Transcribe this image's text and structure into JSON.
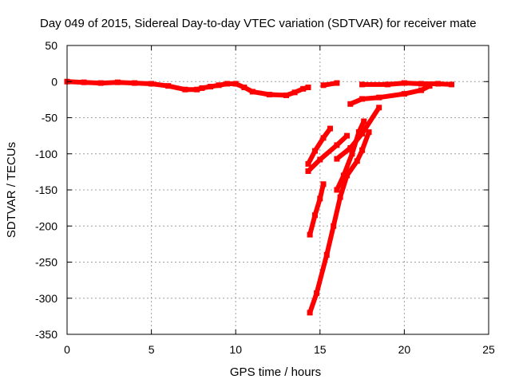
{
  "chart_data": {
    "type": "scatter",
    "title": "Day 049 of 2015, Sidereal Day-to-day VTEC variation (SDTVAR) for receiver mate",
    "xlabel": "GPS time / hours",
    "ylabel": "SDTVAR / TECUs",
    "xlim": [
      0,
      25
    ],
    "ylim": [
      -350,
      50
    ],
    "xticks": [
      0,
      5,
      10,
      15,
      20,
      25
    ],
    "yticks": [
      50,
      0,
      -50,
      -100,
      -150,
      -200,
      -250,
      -300,
      -350
    ],
    "grid": true,
    "legend": "none",
    "series_color": "#ff0000",
    "series": [
      {
        "name": "main-trace",
        "points": [
          [
            0,
            0
          ],
          [
            1,
            -1
          ],
          [
            2,
            -2
          ],
          [
            3,
            -1
          ],
          [
            4,
            -2
          ],
          [
            5,
            -3
          ],
          [
            6,
            -6
          ],
          [
            7,
            -11
          ],
          [
            7.7,
            -11
          ],
          [
            8,
            -9
          ],
          [
            8.5,
            -7
          ],
          [
            9,
            -5
          ],
          [
            9.5,
            -3
          ],
          [
            10,
            -3
          ],
          [
            10.5,
            -8
          ],
          [
            11,
            -14
          ],
          [
            12,
            -18
          ],
          [
            13,
            -19
          ],
          [
            13.5,
            -15
          ],
          [
            14,
            -10
          ],
          [
            14.3,
            -8
          ]
        ]
      },
      {
        "name": "gap-segment-1",
        "points": [
          [
            15.2,
            -5
          ],
          [
            16,
            -2
          ]
        ]
      },
      {
        "name": "late-trace",
        "points": [
          [
            17.5,
            -4
          ],
          [
            19,
            -4
          ],
          [
            20,
            -2
          ],
          [
            21,
            -3
          ],
          [
            22,
            -3
          ],
          [
            22.8,
            -4
          ]
        ]
      },
      {
        "name": "upper-drop-trace",
        "points": [
          [
            16.8,
            -31
          ],
          [
            17.5,
            -24
          ],
          [
            18.5,
            -22
          ],
          [
            20,
            -17
          ],
          [
            21,
            -12
          ],
          [
            21.5,
            -6
          ]
        ]
      },
      {
        "name": "descending-arc-a",
        "points": [
          [
            14.3,
            -114
          ],
          [
            14.7,
            -96
          ],
          [
            15.2,
            -78
          ],
          [
            15.6,
            -65
          ]
        ]
      },
      {
        "name": "descending-arc-b",
        "points": [
          [
            14.3,
            -124
          ],
          [
            15,
            -108
          ],
          [
            16,
            -88
          ],
          [
            16.6,
            -75
          ]
        ]
      },
      {
        "name": "descending-arc-c",
        "points": [
          [
            16,
            -107
          ],
          [
            16.8,
            -92
          ],
          [
            17.5,
            -72
          ],
          [
            18.5,
            -36
          ]
        ]
      },
      {
        "name": "deep-arc-a",
        "points": [
          [
            14.4,
            -212
          ],
          [
            14.7,
            -185
          ],
          [
            15,
            -162
          ],
          [
            15.2,
            -142
          ]
        ]
      },
      {
        "name": "deep-arc-b",
        "points": [
          [
            14.4,
            -320
          ],
          [
            14.8,
            -293
          ],
          [
            15.4,
            -240
          ],
          [
            15.8,
            -200
          ],
          [
            16.2,
            -160
          ],
          [
            16.6,
            -130
          ],
          [
            17.2,
            -110
          ],
          [
            17.5,
            -95
          ],
          [
            17.9,
            -70
          ]
        ]
      },
      {
        "name": "mid-arc",
        "points": [
          [
            16,
            -150
          ],
          [
            16.4,
            -130
          ],
          [
            16.9,
            -100
          ],
          [
            17.3,
            -70
          ],
          [
            17.6,
            -55
          ]
        ]
      }
    ]
  }
}
